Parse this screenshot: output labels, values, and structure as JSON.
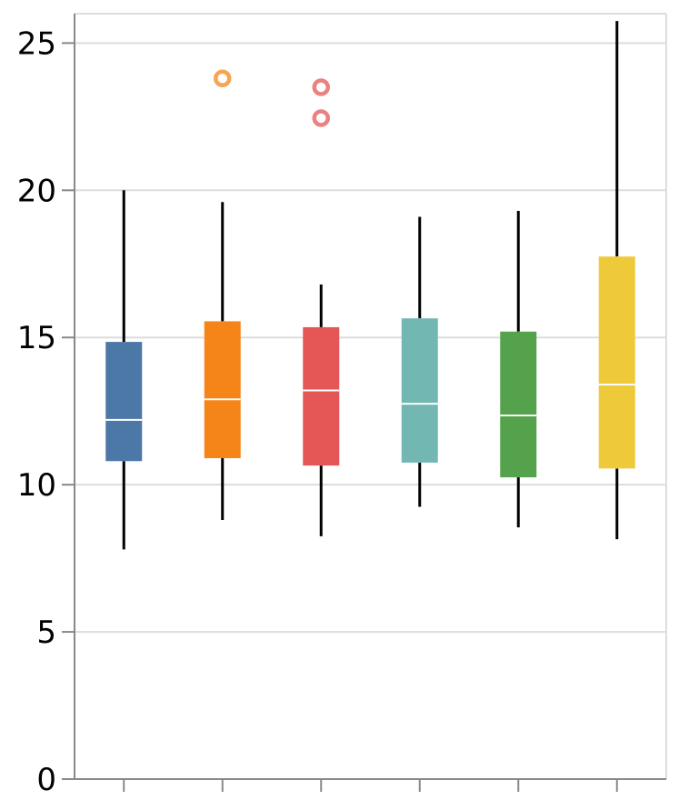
{
  "chart_data": {
    "type": "box",
    "title": "",
    "xlabel": "",
    "ylabel": "",
    "ylim": [
      0,
      26
    ],
    "y_ticks": [
      0,
      5,
      10,
      15,
      20,
      25
    ],
    "y_tick_labels": [
      "0",
      "5",
      "10",
      "15",
      "20",
      "25"
    ],
    "grid": true,
    "legend": "none",
    "colors": {
      "gridline": "#dddddd",
      "axis": "#888888",
      "whisker": "#000000",
      "median": "#ffffff"
    },
    "boxes": [
      {
        "min": 7.8,
        "q1": 10.8,
        "median": 12.2,
        "q3": 14.85,
        "max": 20.0,
        "outliers": [],
        "color": "#4c78a8"
      },
      {
        "min": 8.8,
        "q1": 10.9,
        "median": 12.9,
        "q3": 15.55,
        "max": 19.6,
        "outliers": [
          23.8
        ],
        "color": "#f58518"
      },
      {
        "min": 8.25,
        "q1": 10.65,
        "median": 13.2,
        "q3": 15.35,
        "max": 16.8,
        "outliers": [
          23.5,
          22.45
        ],
        "color": "#e45756"
      },
      {
        "min": 9.25,
        "q1": 10.75,
        "median": 12.75,
        "q3": 15.65,
        "max": 19.1,
        "outliers": [],
        "color": "#72b7b2"
      },
      {
        "min": 8.55,
        "q1": 10.25,
        "median": 12.35,
        "q3": 15.2,
        "max": 19.3,
        "outliers": [],
        "color": "#54a24b"
      },
      {
        "min": 8.15,
        "q1": 10.55,
        "median": 13.4,
        "q3": 17.75,
        "max": 25.75,
        "outliers": [],
        "color": "#eeca3b"
      }
    ]
  }
}
